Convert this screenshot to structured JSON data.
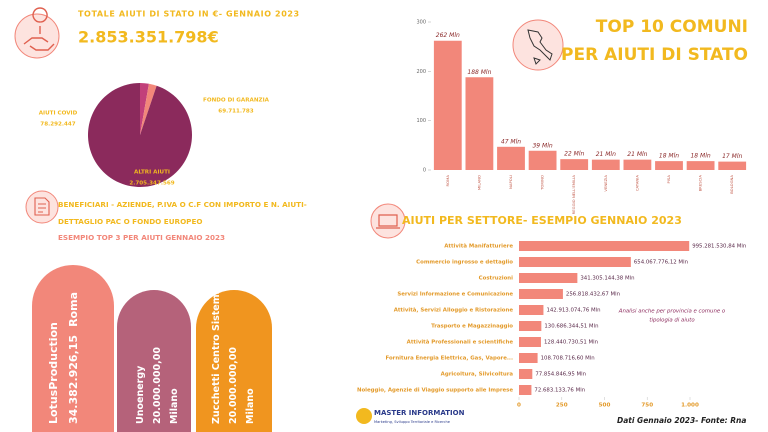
{
  "header": {
    "title": "TOTALE AIUTI DI STATO IN €- GENNAIO 2023",
    "total": "2.853.351.798€"
  },
  "chart_data": [
    {
      "type": "pie",
      "categories": [
        "AIUTI COVID",
        "FONDO DI GARANZIA",
        "ALTRI AIUTI"
      ],
      "values": [
        78292447,
        69711783,
        2705347569
      ],
      "value_labels": [
        "78.292.447",
        "69.711.783",
        "2.705.347.569"
      ],
      "colors": [
        "#c2407a",
        "#f2877a",
        "#8b2a5c"
      ]
    },
    {
      "type": "bar",
      "title": [
        "TOP 10 COMUNI",
        "PER AIUTI DI STATO"
      ],
      "categories": [
        "ROMA",
        "MILANO",
        "NAPOLI",
        "TORINO",
        "REGGIO NELL'EMILIA",
        "VENEZIA",
        "CATANIA",
        "PISA",
        "BRESCIA",
        "BOLOGNA"
      ],
      "values": [
        262,
        188,
        47,
        39,
        22,
        21,
        21,
        18,
        18,
        17
      ],
      "value_labels": [
        "262 Mln",
        "188 Mln",
        "47 Mln",
        "39 Mln",
        "22 Mln",
        "21 Mln",
        "21 Mln",
        "18 Mln",
        "18 Mln",
        "17 Mln"
      ],
      "color": "#f2877a",
      "ylim": [
        0,
        300
      ],
      "yticks": [
        0,
        100,
        200,
        300
      ]
    },
    {
      "type": "bar",
      "orientation": "horizontal",
      "title": "AIUTI PER SETTORE- ESEMPIO GENNAIO 2023",
      "categories": [
        "Attività Manifatturiere",
        "Commercio ingrosso e dettaglio",
        "Costruzioni",
        "Servizi Informazione e Comunicazione",
        "Attività, Servizi Alloggio e Ristorazione",
        "Trasporto e Magazzinaggio",
        "Attività Professionali e scientifiche",
        "Fornitura Energia Elettrica, Gas, Vapore...",
        "Agricoltura, Silvicoltura",
        "Noleggio, Agenzie di Viaggio supporto alle Imprese"
      ],
      "values": [
        995.28153084,
        654.0677761,
        341.30514438,
        256.81843267,
        142.91307476,
        130.68634451,
        128.44073051,
        108.7087166,
        77.85484695,
        72.68313376
      ],
      "value_labels": [
        "995.281.530,84 Mln",
        "654.067.776,12 Mln",
        "341.305.144,38 Mln",
        "256.818.432,67 Mln",
        "142.913.074,76 Mln",
        "130.686.344,51 Mln",
        "128.440.730,51 Mln",
        "108.708.716,60 Mln",
        "77.854.846,95 Mln",
        "72.683.133,76 Mln"
      ],
      "color": "#f2877a",
      "xlim": [
        0,
        1000
      ],
      "xticks": [
        0,
        250,
        500,
        750,
        {
          "value": 1000,
          "label": "1.000"
        }
      ],
      "annotation": [
        "Analisi anche per provincia e comune o",
        "tipologia di aiuto"
      ]
    }
  ],
  "beneficiaries": {
    "title": [
      "BENEFICIARI - AZIENDE, P.IVA O C.F CON IMPORTO E N. AIUTI-",
      "DETTAGLIO PAC O FONDO EUROPEO"
    ],
    "subtitle": "ESEMPIO TOP 3 PER AIUTI GENNAIO 2023",
    "items": [
      {
        "name": "LotusProduction",
        "amount": "34.382.926,15",
        "city": "Roma"
      },
      {
        "name": "Unoenergy",
        "amount": "20.000.000,00",
        "city": "Milano"
      },
      {
        "name": "Zucchetti Centro Sistemi",
        "amount": "20.000.000,00",
        "city": "Milano"
      }
    ]
  },
  "logo": {
    "name": "MASTER INFORMATION",
    "tagline": "Marketing, Sviluppo Territoriale e Ricerche"
  },
  "footer": "Dati Gennaio 2023- Fonte: Rna"
}
